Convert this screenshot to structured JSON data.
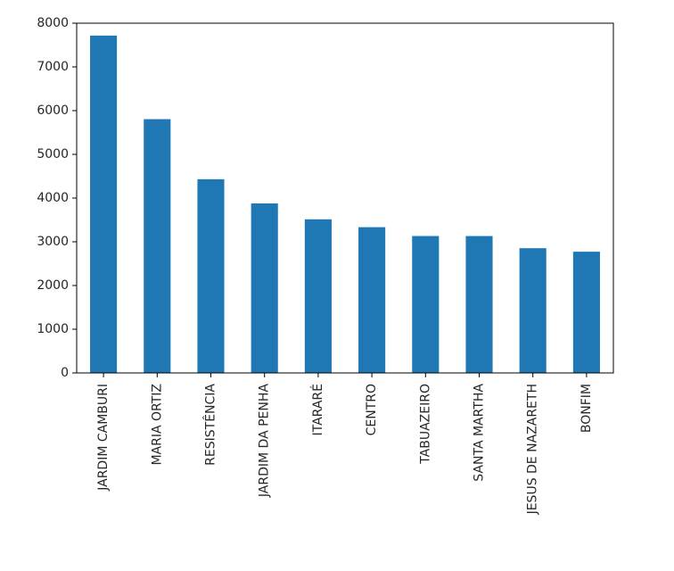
{
  "chart_data": {
    "type": "bar",
    "title": "",
    "xlabel": "",
    "ylabel": "",
    "categories": [
      "JARDIM CAMBURI",
      "MARIA ORTIZ",
      "RESISTÊNCIA",
      "JARDIM DA PENHA",
      "ITARARÉ",
      "CENTRO",
      "TABUAZEIRO",
      "SANTA MARTHA",
      "JESUS DE NAZARETH",
      "BONFIM"
    ],
    "values": [
      7717,
      5805,
      4431,
      3877,
      3514,
      3334,
      3132,
      3131,
      2853,
      2773
    ],
    "ylim": [
      0,
      8000
    ],
    "yticks": [
      0,
      1000,
      2000,
      3000,
      4000,
      5000,
      6000,
      7000,
      8000
    ],
    "ytick_labels": [
      "0",
      "1000",
      "2000",
      "3000",
      "4000",
      "5000",
      "6000",
      "7000",
      "8000"
    ],
    "grid": false,
    "legend": "none",
    "bar_color": "#1f77b4",
    "axis_color": "#000000",
    "text_color": "#262626"
  }
}
